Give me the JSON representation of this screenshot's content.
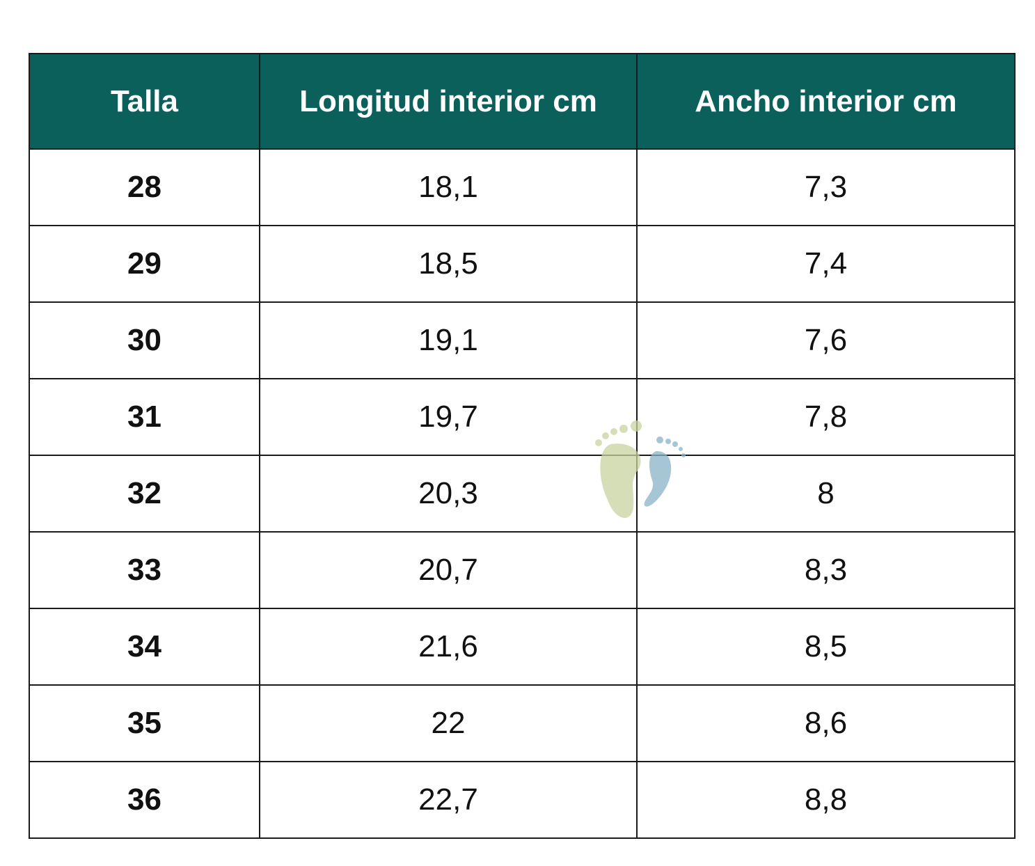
{
  "table": {
    "header": [
      "Talla",
      "Longitud interior cm",
      "Ancho interior cm"
    ],
    "rows": [
      [
        "28",
        "18,1",
        "7,3"
      ],
      [
        "29",
        "18,5",
        "7,4"
      ],
      [
        "30",
        "19,1",
        "7,6"
      ],
      [
        "31",
        "19,7",
        "7,8"
      ],
      [
        "32",
        "20,3",
        "8"
      ],
      [
        "33",
        "20,7",
        "8,3"
      ],
      [
        "34",
        "21,6",
        "8,5"
      ],
      [
        "35",
        "22",
        "8,6"
      ],
      [
        "36",
        "22,7",
        "8,8"
      ]
    ]
  }
}
